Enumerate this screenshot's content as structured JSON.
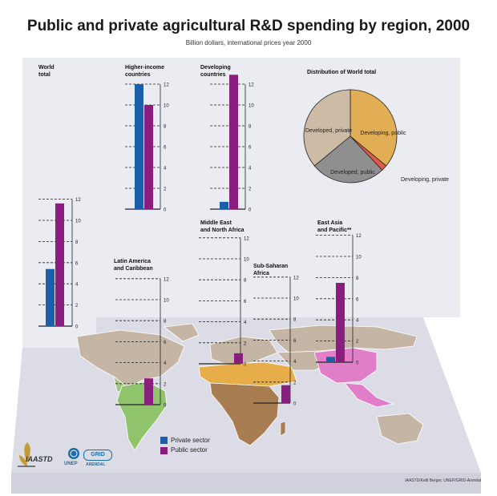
{
  "title": "Public and private agricultural R&D spending by region, 2000",
  "subtitle": "Billion dollars, international prices year 2000",
  "legend": {
    "private_label": "Private sector",
    "public_label": "Public sector"
  },
  "credit": "IAASTD/Ketil Berger, UNEP/GRID-Arendal",
  "logos": {
    "iaastd": "IAASTD",
    "unep": "UNEP",
    "grid": "GRID",
    "arendal": "ARENDAL"
  },
  "colors": {
    "private": "#1a5fa8",
    "public": "#8a1e7f",
    "pie_dev_public": "#e1ad55",
    "pie_dev_private": "#e25b4a",
    "pie_devd_public": "#8f8f8f",
    "pie_devd_private": "#cdbba5"
  },
  "chart_data": [
    {
      "type": "bar",
      "title": "World\ntotal",
      "categories": [
        "Private sector",
        "Public sector"
      ],
      "values": [
        5.4,
        11.6
      ],
      "ylim": [
        0,
        12
      ],
      "yticks": [
        "0",
        "2",
        "4",
        "6",
        "8",
        "10",
        "12"
      ]
    },
    {
      "type": "bar",
      "title": "Higher-income\ncountries",
      "categories": [
        "Private sector",
        "Public sector"
      ],
      "values": [
        12.0,
        10.0
      ],
      "ylim": [
        0,
        12
      ],
      "yticks": [
        "0",
        "2",
        "4",
        "6",
        "8",
        "10",
        "12"
      ]
    },
    {
      "type": "bar",
      "title": "Developing\ncountries",
      "categories": [
        "Private sector",
        "Public sector"
      ],
      "values": [
        0.7,
        12.9
      ],
      "ylim": [
        0,
        12
      ],
      "yticks": [
        "0",
        "2",
        "4",
        "6",
        "8",
        "10",
        "12"
      ]
    },
    {
      "type": "bar",
      "title": "Latin America\nand Caribbean",
      "categories": [
        "Private sector",
        "Public sector"
      ],
      "values": [
        0.0,
        2.5
      ],
      "ylim": [
        0,
        12
      ],
      "yticks": [
        "0",
        "2",
        "4",
        "6",
        "8",
        "10",
        "12"
      ]
    },
    {
      "type": "bar",
      "title": "Middle East\nand North Africa",
      "categories": [
        "Private sector",
        "Public sector"
      ],
      "values": [
        0.0,
        1.0
      ],
      "ylim": [
        0,
        12
      ],
      "yticks": [
        "0",
        "2",
        "4",
        "6",
        "8",
        "10",
        "12"
      ]
    },
    {
      "type": "bar",
      "title": "Sub-Saharan\nAfrica",
      "categories": [
        "Private sector",
        "Public sector"
      ],
      "values": [
        0.0,
        1.7
      ],
      "ylim": [
        0,
        12
      ],
      "yticks": [
        "0",
        "2",
        "4",
        "6",
        "8",
        "10",
        "12"
      ]
    },
    {
      "type": "bar",
      "title": "East Asia\nand Pacific**",
      "categories": [
        "Private sector",
        "Public sector"
      ],
      "values": [
        0.5,
        7.5
      ],
      "ylim": [
        0,
        12
      ],
      "yticks": [
        "0",
        "2",
        "4",
        "6",
        "8",
        "10",
        "12"
      ]
    },
    {
      "type": "pie",
      "title": "Distribution of World total",
      "labels": [
        "Developing, public",
        "Developing, private",
        "Developed, public",
        "Developed, private"
      ],
      "values": [
        36,
        2,
        26,
        36
      ],
      "colors": [
        "#e1ad55",
        "#e25b4a",
        "#8f8f8f",
        "#cdbba5"
      ]
    }
  ]
}
